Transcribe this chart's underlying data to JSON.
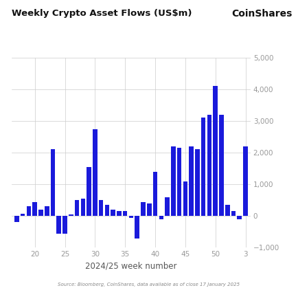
{
  "title": "Weekly Crypto Asset Flows (US$m)",
  "coinshares_label": "CoinShares",
  "xlabel": "2024/25 week number",
  "source_text": "Source: Bloomberg, CoinShares, data available as of close 17 January 2025",
  "bar_color": "#1a1adb",
  "background_color": "#ffffff",
  "ylim": [
    -1000,
    5000
  ],
  "yticks": [
    -1000,
    0,
    1000,
    2000,
    3000,
    4000,
    5000
  ],
  "xtick_labels": [
    20,
    25,
    30,
    35,
    40,
    45,
    50,
    3
  ],
  "weeks": [
    17,
    18,
    19,
    20,
    21,
    22,
    23,
    24,
    25,
    26,
    27,
    28,
    29,
    30,
    31,
    32,
    33,
    34,
    35,
    36,
    37,
    38,
    39,
    40,
    41,
    42,
    43,
    44,
    45,
    46,
    47,
    48,
    49,
    50,
    51,
    52,
    1,
    2,
    3
  ],
  "values": [
    -200,
    80,
    300,
    450,
    200,
    300,
    2100,
    -550,
    -550,
    50,
    500,
    550,
    1550,
    2750,
    500,
    350,
    200,
    150,
    150,
    -50,
    -700,
    450,
    400,
    1400,
    -100,
    600,
    2200,
    2150,
    1100,
    2200,
    2100,
    3100,
    3200,
    4100,
    3200,
    350,
    150,
    -100,
    2200
  ]
}
